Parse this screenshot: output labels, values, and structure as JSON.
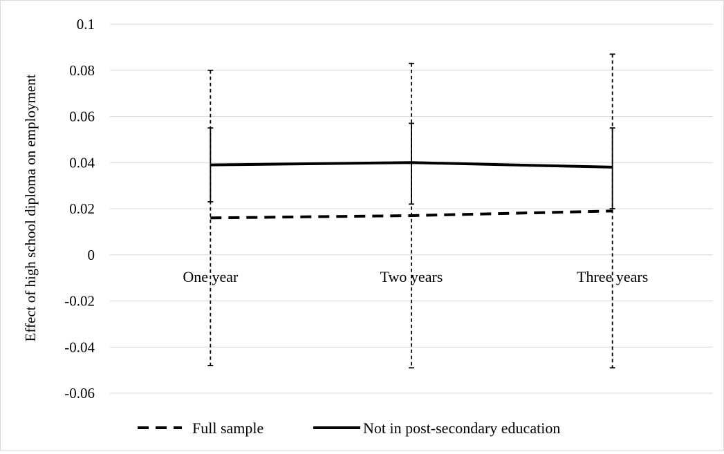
{
  "chart_data": {
    "type": "line",
    "title": "",
    "xlabel": "",
    "ylabel": "Effect of high school diploma on employment",
    "ylim": [
      -0.06,
      0.1
    ],
    "yticks": [
      -0.06,
      -0.04,
      -0.02,
      0,
      0.02,
      0.04,
      0.06,
      0.08,
      0.1
    ],
    "ytick_labels": [
      "-0.06",
      "-0.04",
      "-0.02",
      "0",
      "0.02",
      "0.04",
      "0.06",
      "0.08",
      "0.1"
    ],
    "grid": true,
    "legend_position": "bottom",
    "categories": [
      "One year",
      "Two years",
      "Three years"
    ],
    "series": [
      {
        "name": "Full sample",
        "line_style": "dashed",
        "color": "#000000",
        "values": [
          0.016,
          0.017,
          0.019
        ],
        "ci_lower": [
          -0.048,
          -0.049,
          -0.049
        ],
        "ci_upper": [
          0.08,
          0.083,
          0.087
        ]
      },
      {
        "name": "Not in post-secondary education",
        "line_style": "solid",
        "color": "#000000",
        "values": [
          0.039,
          0.04,
          0.038
        ],
        "ci_lower": [
          0.023,
          0.022,
          0.02
        ],
        "ci_upper": [
          0.055,
          0.057,
          0.055
        ]
      }
    ]
  }
}
